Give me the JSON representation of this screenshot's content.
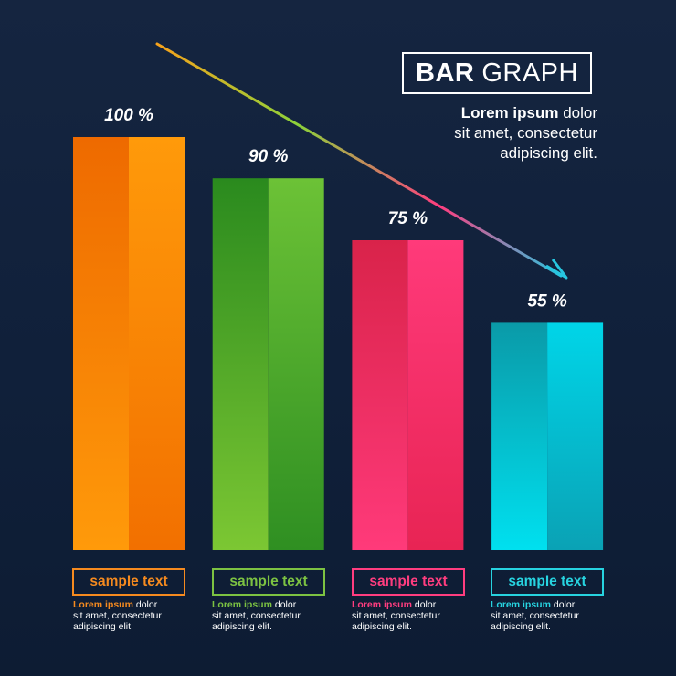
{
  "header": {
    "title_bold": "BAR",
    "title_light": "GRAPH",
    "desc_bold": "Lorem ipsum",
    "desc_line1_rest": " dolor",
    "desc_line2": "sit amet, consectetur",
    "desc_line3": "adipiscing elit."
  },
  "chart_data": {
    "type": "bar",
    "title": "BAR GRAPH",
    "categories": [
      "sample text",
      "sample text",
      "sample text",
      "sample text"
    ],
    "values": [
      100,
      90,
      75,
      55
    ],
    "data_labels": [
      "100 %",
      "90 %",
      "75 %",
      "55 %"
    ],
    "ylim": [
      0,
      100
    ],
    "grid": false,
    "trend_arrow": "decreasing",
    "colors": [
      "#f27a00",
      "#3a9d23",
      "#ff2e6e",
      "#00b7c7"
    ]
  },
  "categories": [
    {
      "label": "sample text",
      "desc_bold": "Lorem ipsum",
      "desc_rest": " dolor",
      "desc_line2": "sit amet, consectetur",
      "desc_line3": "adipiscing elit.",
      "color": "#f58a1f"
    },
    {
      "label": "sample text",
      "desc_bold": "Lorem ipsum",
      "desc_rest": " dolor",
      "desc_line2": "sit amet, consectetur",
      "desc_line3": "adipiscing elit.",
      "color": "#7cc242"
    },
    {
      "label": "sample text",
      "desc_bold": "Lorem ipsum",
      "desc_rest": " dolor",
      "desc_line2": "sit amet, consectetur",
      "desc_line3": "adipiscing elit.",
      "color": "#ff3d7f"
    },
    {
      "label": "sample text",
      "desc_bold": "Lorem ipsum",
      "desc_rest": " dolor",
      "desc_line2": "sit amet, consectetur",
      "desc_line3": "adipiscing elit.",
      "color": "#27d3e0"
    }
  ]
}
